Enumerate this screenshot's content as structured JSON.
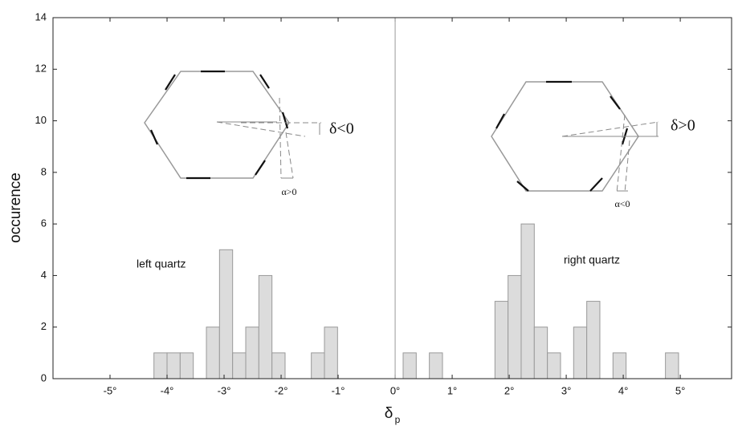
{
  "chart_data": {
    "type": "histogram",
    "ylabel": "occurence",
    "xlabel": {
      "symbol": "δ",
      "subscript": "p"
    },
    "bins": [
      -4.23,
      -4.0,
      -3.77,
      -3.54,
      -3.31,
      -3.08,
      -2.85,
      -2.62,
      -2.39,
      -2.16,
      -1.93,
      -1.7,
      -1.47,
      -1.24,
      -1.01,
      -0.78,
      -0.55,
      -0.32,
      -0.09,
      0.14,
      0.37,
      0.6,
      0.83,
      1.06,
      1.29,
      1.52,
      1.75,
      1.98,
      2.21,
      2.44,
      2.67,
      2.9,
      3.13,
      3.36,
      3.59,
      3.82,
      4.05,
      4.28,
      4.51,
      4.74,
      4.97
    ],
    "values": [
      1,
      1,
      1,
      0,
      2,
      5,
      1,
      2,
      4,
      1,
      0,
      0,
      1,
      2,
      0,
      0,
      0,
      0,
      0,
      1,
      0,
      1,
      0,
      0,
      0,
      0,
      3,
      4,
      6,
      2,
      1,
      0,
      2,
      3,
      0,
      1,
      0,
      0,
      0,
      1
    ],
    "color": "#dcdcdc",
    "xlim": [
      -6,
      5.9
    ],
    "ylim": [
      0,
      14
    ],
    "xticks": [
      {
        "value": -5,
        "label": "-5°"
      },
      {
        "value": -4,
        "label": "-4°"
      },
      {
        "value": -3,
        "label": "-3°"
      },
      {
        "value": -2,
        "label": "-2°"
      },
      {
        "value": -1,
        "label": "-1°"
      },
      {
        "value": 0,
        "label": "0°"
      },
      {
        "value": 1,
        "label": "1°"
      },
      {
        "value": 2,
        "label": "2°"
      },
      {
        "value": 3,
        "label": "3°"
      },
      {
        "value": 4,
        "label": "4°"
      },
      {
        "value": 5,
        "label": "5°"
      }
    ],
    "yticks": [
      0,
      2,
      4,
      6,
      8,
      10,
      12,
      14
    ],
    "annotations": [
      "left quartz",
      "right quartz",
      "δ<0",
      "δ>0",
      "α>0",
      "α<0"
    ]
  }
}
